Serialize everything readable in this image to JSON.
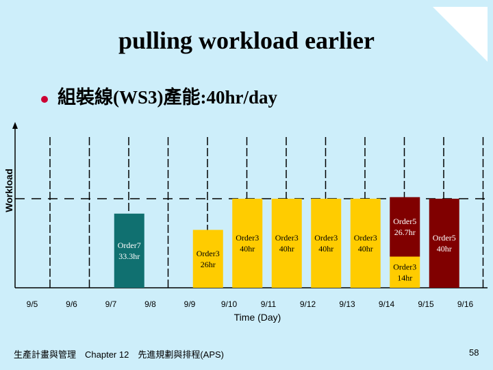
{
  "slide": {
    "title": "pulling workload earlier",
    "bullet": "組裝線(WS3)產能:40hr/day",
    "footer": "生產計畫與管理　Chapter 12　先進規劃與排程(APS)",
    "page_number": "58"
  },
  "colors": {
    "background": "#cdeefa",
    "order7": "#107070",
    "order3": "#ffcc00",
    "order5": "#800000"
  },
  "chart_data": {
    "type": "bar",
    "xlabel": "Time (Day)",
    "ylabel": "Workload",
    "capacity": 40,
    "ylim": [
      0,
      50
    ],
    "categories": [
      "9/5",
      "9/6",
      "9/7",
      "9/8",
      "9/9",
      "9/10",
      "9/11",
      "9/12",
      "9/13",
      "9/14",
      "9/15",
      "9/16"
    ],
    "bars": [
      {
        "day": "9/7",
        "segments": [
          {
            "label": "Order7 33.3hr",
            "value": 33.3,
            "color": "#107070"
          }
        ]
      },
      {
        "day": "9/9",
        "segments": [
          {
            "label": "Order3 26hr",
            "value": 26,
            "color": "#ffcc00"
          }
        ]
      },
      {
        "day": "9/10",
        "segments": [
          {
            "label": "Order3 40hr",
            "value": 40,
            "color": "#ffcc00"
          }
        ]
      },
      {
        "day": "9/11",
        "segments": [
          {
            "label": "Order3 40hr",
            "value": 40,
            "color": "#ffcc00"
          }
        ]
      },
      {
        "day": "9/12",
        "segments": [
          {
            "label": "Order3 40hr",
            "value": 40,
            "color": "#ffcc00"
          }
        ]
      },
      {
        "day": "9/13",
        "segments": [
          {
            "label": "Order3 40hr",
            "value": 40,
            "color": "#ffcc00"
          }
        ]
      },
      {
        "day": "9/14",
        "segments": [
          {
            "label": "Order3 14hr",
            "value": 14,
            "color": "#ffcc00"
          },
          {
            "label": "Order5 26.7hr",
            "value": 26.7,
            "color": "#800000"
          }
        ]
      },
      {
        "day": "9/15",
        "segments": [
          {
            "label": "Order5 40hr",
            "value": 40,
            "color": "#800000"
          }
        ]
      }
    ]
  }
}
